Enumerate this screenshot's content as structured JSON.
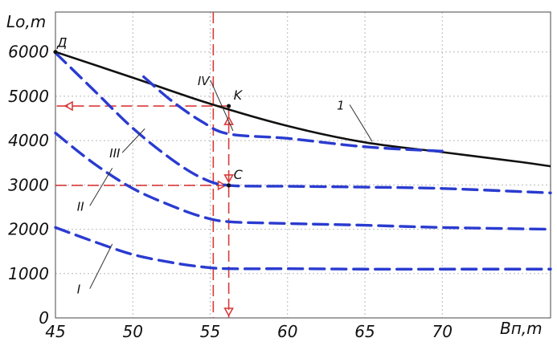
{
  "chart_data": {
    "type": "line",
    "xlabel": "Bп,m",
    "ylabel": "Lо,m",
    "xlim": [
      45,
      77
    ],
    "ylim": [
      0,
      6900
    ],
    "xticks": [
      45,
      50,
      55,
      60,
      65,
      70
    ],
    "yticks": [
      0,
      1000,
      2000,
      3000,
      4000,
      5000,
      6000
    ],
    "grid": true,
    "series": [
      {
        "name": "1",
        "style": "solid",
        "color": "#111111",
        "x": [
          45,
          50,
          55,
          60,
          65,
          70,
          75,
          77
        ],
        "y": [
          6000,
          5420,
          4830,
          4330,
          3960,
          3740,
          3520,
          3420
        ],
        "label_at": [
          63.5,
          4700
        ]
      },
      {
        "name": "IV",
        "style": "dashed",
        "color": "#2a3bd0",
        "x": [
          50.7,
          52.5,
          54.5,
          56.2,
          60,
          65,
          70
        ],
        "y": [
          5440,
          4900,
          4420,
          4150,
          4050,
          3860,
          3760
        ],
        "label_at": [
          54.5,
          5250
        ]
      },
      {
        "name": "III",
        "style": "dashed",
        "color": "#2a3bd0",
        "x": [
          45,
          47.5,
          50,
          52.5,
          54.5,
          56.2,
          60,
          65,
          70,
          77
        ],
        "y": [
          5980,
          5130,
          4280,
          3580,
          3150,
          2990,
          2970,
          2950,
          2920,
          2820
        ],
        "label_at": [
          48.8,
          3620
        ]
      },
      {
        "name": "II",
        "style": "dashed",
        "color": "#2a3bd0",
        "x": [
          45,
          47.5,
          50,
          52.5,
          54.5,
          56.2,
          60,
          65,
          70,
          77
        ],
        "y": [
          4170,
          3480,
          2920,
          2530,
          2280,
          2170,
          2130,
          2090,
          2040,
          2000
        ],
        "label_at": [
          46.7,
          2420
        ]
      },
      {
        "name": "I",
        "style": "dashed",
        "color": "#2a3bd0",
        "x": [
          45,
          47.5,
          50,
          52.5,
          54.5,
          56.2,
          60,
          65,
          70,
          77
        ],
        "y": [
          2040,
          1720,
          1430,
          1250,
          1150,
          1110,
          1110,
          1100,
          1100,
          1100
        ],
        "label_at": [
          46.7,
          550
        ]
      }
    ],
    "points": [
      {
        "label": "Д",
        "x": 45,
        "y": 6000
      },
      {
        "label": "K",
        "x": 56.2,
        "y": 4780
      },
      {
        "label": "C",
        "x": 56.2,
        "y": 2990
      }
    ],
    "guides": [
      {
        "from": [
          56.2,
          4780
        ],
        "to": [
          45,
          4780
        ],
        "color": "#d83a3a"
      },
      {
        "from": [
          45,
          2990
        ],
        "to": [
          56.2,
          2990
        ],
        "color": "#d83a3a"
      },
      {
        "from": [
          56.2,
          4780
        ],
        "to": [
          56.2,
          0
        ],
        "color": "#d83a3a"
      },
      {
        "from": [
          55.2,
          6900
        ],
        "to": [
          55.2,
          0
        ],
        "color": "#d83a3a"
      }
    ]
  }
}
